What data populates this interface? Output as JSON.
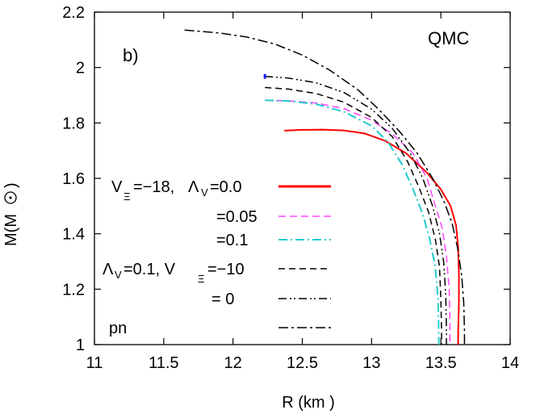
{
  "chart_data": {
    "type": "line",
    "title": "",
    "panel_label": "b)",
    "model_label": "QMC",
    "xlabel": "R (km )",
    "ylabel": "M(M",
    "xlim": [
      11,
      14
    ],
    "ylim": [
      1,
      2.2
    ],
    "xticks": [
      "11",
      "11.5",
      "12",
      "12.5",
      "13",
      "13.5",
      "14"
    ],
    "yticks": [
      "1",
      "1.2",
      "1.4",
      "1.6",
      "1.8",
      "2",
      "2.2"
    ],
    "grid": false,
    "legend_position": "left",
    "legend": [
      {
        "sym": "V",
        "sub": "Ξ",
        "rest": "=−18,",
        "sym2": "Λ",
        "sub2": "V",
        "rest2": "=0.0"
      },
      {
        "text": "=0.05"
      },
      {
        "text": "=0.1"
      },
      {
        "sym": "Λ",
        "sub": "V",
        "rest": "=0.1, V",
        "sub2": "Ξ",
        "rest2": "=−10"
      },
      {
        "text": "=  0"
      },
      {
        "text": "pn"
      }
    ],
    "series": [
      {
        "color": "#ff0000",
        "dash": "",
        "width": 2,
        "points": [
          [
            12.37,
            1.772
          ],
          [
            12.5,
            1.775
          ],
          [
            12.65,
            1.776
          ],
          [
            12.8,
            1.773
          ],
          [
            12.95,
            1.762
          ],
          [
            13.1,
            1.735
          ],
          [
            13.25,
            1.69
          ],
          [
            13.4,
            1.62
          ],
          [
            13.5,
            1.56
          ],
          [
            13.57,
            1.5
          ],
          [
            13.61,
            1.43
          ],
          [
            13.625,
            1.35
          ],
          [
            13.63,
            1.25
          ],
          [
            13.63,
            1.15
          ],
          [
            13.625,
            1.05
          ],
          [
            13.625,
            1.0
          ]
        ]
      },
      {
        "color": "#ff44ff",
        "dash": "9,5",
        "width": 1.5,
        "points": [
          [
            12.23,
            1.882
          ],
          [
            12.4,
            1.88
          ],
          [
            12.6,
            1.872
          ],
          [
            12.8,
            1.852
          ],
          [
            13.0,
            1.81
          ],
          [
            13.15,
            1.76
          ],
          [
            13.3,
            1.69
          ],
          [
            13.4,
            1.6
          ],
          [
            13.46,
            1.5
          ],
          [
            13.51,
            1.42
          ],
          [
            13.54,
            1.32
          ],
          [
            13.56,
            1.2
          ],
          [
            13.565,
            1.1
          ],
          [
            13.565,
            1.0
          ]
        ]
      },
      {
        "color": "#22cccc",
        "dash": "11,4,2,4",
        "width": 2,
        "points": [
          [
            12.23,
            1.882
          ],
          [
            12.4,
            1.879
          ],
          [
            12.6,
            1.868
          ],
          [
            12.8,
            1.84
          ],
          [
            13.0,
            1.79
          ],
          [
            13.12,
            1.73
          ],
          [
            13.22,
            1.65
          ],
          [
            13.3,
            1.56
          ],
          [
            13.37,
            1.47
          ],
          [
            13.42,
            1.38
          ],
          [
            13.46,
            1.28
          ],
          [
            13.48,
            1.16
          ],
          [
            13.485,
            1.05
          ],
          [
            13.485,
            1.0
          ]
        ]
      },
      {
        "color": "#000000",
        "dash": "8,5",
        "width": 1.5,
        "points": [
          [
            12.23,
            1.928
          ],
          [
            12.4,
            1.922
          ],
          [
            12.6,
            1.906
          ],
          [
            12.8,
            1.875
          ],
          [
            13.0,
            1.82
          ],
          [
            13.15,
            1.75
          ],
          [
            13.26,
            1.66
          ],
          [
            13.34,
            1.57
          ],
          [
            13.41,
            1.48
          ],
          [
            13.46,
            1.38
          ],
          [
            13.49,
            1.28
          ],
          [
            13.5,
            1.16
          ],
          [
            13.505,
            1.05
          ],
          [
            13.505,
            1.0
          ]
        ]
      },
      {
        "color": "#000000",
        "dash": "10,4,2,3,2,4",
        "width": 1.5,
        "points": [
          [
            12.23,
            1.968
          ],
          [
            12.4,
            1.962
          ],
          [
            12.6,
            1.945
          ],
          [
            12.8,
            1.91
          ],
          [
            13.0,
            1.85
          ],
          [
            13.15,
            1.78
          ],
          [
            13.28,
            1.69
          ],
          [
            13.37,
            1.6
          ],
          [
            13.44,
            1.5
          ],
          [
            13.49,
            1.4
          ],
          [
            13.52,
            1.3
          ],
          [
            13.535,
            1.18
          ],
          [
            13.54,
            1.06
          ],
          [
            13.54,
            1.0
          ]
        ]
      },
      {
        "color": "#000000",
        "dash": "12,4,3,4",
        "width": 1.5,
        "points": [
          [
            11.65,
            2.135
          ],
          [
            11.9,
            2.125
          ],
          [
            12.1,
            2.11
          ],
          [
            12.3,
            2.085
          ],
          [
            12.5,
            2.045
          ],
          [
            12.7,
            1.99
          ],
          [
            12.9,
            1.92
          ],
          [
            13.05,
            1.85
          ],
          [
            13.2,
            1.77
          ],
          [
            13.33,
            1.69
          ],
          [
            13.44,
            1.6
          ],
          [
            13.52,
            1.52
          ],
          [
            13.58,
            1.44
          ],
          [
            13.62,
            1.35
          ],
          [
            13.65,
            1.25
          ],
          [
            13.665,
            1.15
          ],
          [
            13.67,
            1.05
          ],
          [
            13.67,
            1.0
          ]
        ]
      }
    ],
    "blue_marker": {
      "color": "#1a1aff",
      "x": 12.23,
      "y": 1.968
    }
  }
}
